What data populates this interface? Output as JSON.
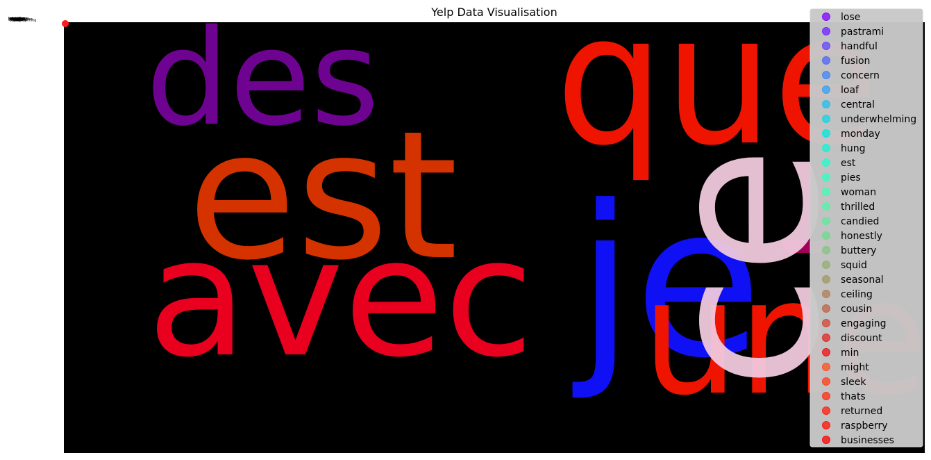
{
  "chart_data": {
    "type": "scatter",
    "title": "Yelp Data Visualisation",
    "xlabel": "",
    "ylabel": "",
    "legend_position": "upper-right",
    "grid": false,
    "axes_visible": false,
    "background_image": {
      "type": "wordcloud",
      "background": "#000000",
      "words": [
        {
          "text": "des",
          "color": "#6f0391"
        },
        {
          "text": "que",
          "color": "#ee1400"
        },
        {
          "text": "est",
          "color": "#d43300"
        },
        {
          "text": "je",
          "color": "#1010f5"
        },
        {
          "text": "avec",
          "color": "#e8001e"
        },
        {
          "text": "une",
          "color": "#ee1400"
        },
        {
          "text": "ce",
          "color": "#f0c8dc"
        }
      ]
    },
    "series": [
      {
        "name": "lose",
        "color": "#8000ff"
      },
      {
        "name": "pastrami",
        "color": "#7022fe"
      },
      {
        "name": "handful",
        "color": "#6044fd"
      },
      {
        "name": "fusion",
        "color": "#5064fa"
      },
      {
        "name": "concern",
        "color": "#4084f7"
      },
      {
        "name": "loaf",
        "color": "#30a2f2"
      },
      {
        "name": "central",
        "color": "#20bded"
      },
      {
        "name": "underwhelming",
        "color": "#10d5e5"
      },
      {
        "name": "monday",
        "color": "#00e8de"
      },
      {
        "name": "hung",
        "color": "#10f4d4"
      },
      {
        "name": "est",
        "color": "#20fccb"
      },
      {
        "name": "pies",
        "color": "#30ffc0"
      },
      {
        "name": "woman",
        "color": "#40fcb4"
      },
      {
        "name": "thrilled",
        "color": "#50f5a8"
      },
      {
        "name": "candied",
        "color": "#60ea9b"
      },
      {
        "name": "honestly",
        "color": "#70d98e"
      },
      {
        "name": "buttery",
        "color": "#80c680"
      },
      {
        "name": "squid",
        "color": "#90b071"
      },
      {
        "name": "seasonal",
        "color": "#a09862"
      },
      {
        "name": "ceiling",
        "color": "#b07e53"
      },
      {
        "name": "cousin",
        "color": "#c06244"
      },
      {
        "name": "engaging",
        "color": "#d04534"
      },
      {
        "name": "discount",
        "color": "#e02724"
      },
      {
        "name": "min",
        "color": "#f00e14"
      },
      {
        "name": "might",
        "color": "#ff4e20"
      },
      {
        "name": "sleek",
        "color": "#ff3c18"
      },
      {
        "name": "thats",
        "color": "#ff2e12"
      },
      {
        "name": "returned",
        "color": "#ff1e0c"
      },
      {
        "name": "raspberry",
        "color": "#ff1006"
      },
      {
        "name": "businesses",
        "color": "#ff0000"
      }
    ]
  }
}
